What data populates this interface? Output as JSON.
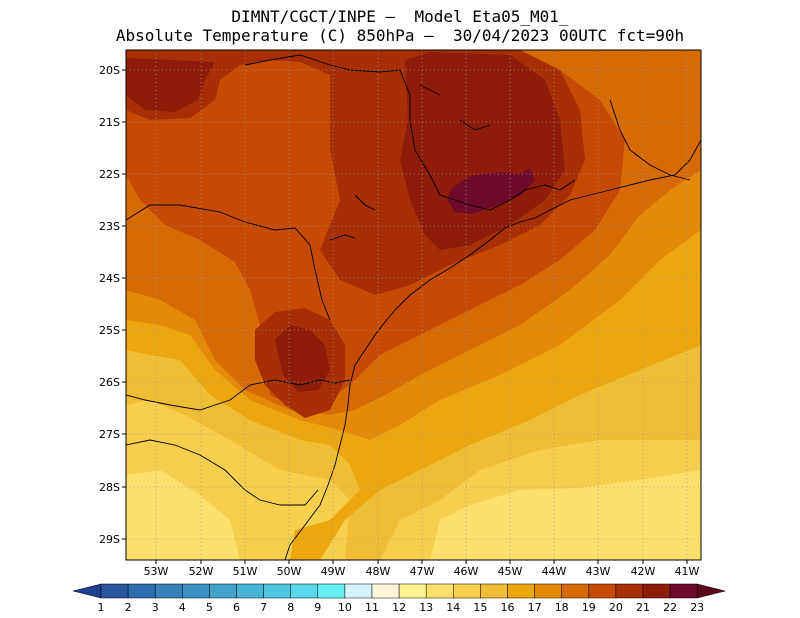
{
  "title": {
    "line1": "DIMNT/CGCT/INPE –  Model Eta05_M01_",
    "line2": "Absolute Temperature (C) 850hPa –  30/04/2023 00UTC fct=90h"
  },
  "axes": {
    "lat_labels": [
      "20S",
      "21S",
      "22S",
      "23S",
      "24S",
      "25S",
      "26S",
      "27S",
      "28S",
      "29S"
    ],
    "lon_labels": [
      "53W",
      "52W",
      "51W",
      "50W",
      "49W",
      "48W",
      "47W",
      "46W",
      "45W",
      "44W",
      "43W",
      "42W",
      "41W"
    ]
  },
  "colorbar": {
    "labels": [
      "1",
      "2",
      "3",
      "4",
      "5",
      "6",
      "7",
      "8",
      "9",
      "10",
      "11",
      "12",
      "13",
      "14",
      "15",
      "16",
      "17",
      "18",
      "19",
      "20",
      "21",
      "22",
      "23"
    ],
    "colors": [
      "#1f3f8f",
      "#2a56a0",
      "#2f6caf",
      "#3780b8",
      "#3c90c2",
      "#42a2cc",
      "#48b4d6",
      "#4fc6df",
      "#58d8ea",
      "#66f0f5",
      "#d5f3fb",
      "#fff6da",
      "#fff291",
      "#fbe06c",
      "#f6cf4f",
      "#f0bd36",
      "#eca70f",
      "#e38a08",
      "#d86a06",
      "#c64a04",
      "#a72e05",
      "#8d1c0b",
      "#6e0a2a",
      "#5a0a1a"
    ]
  },
  "map": {
    "field_colors": {
      "t14": "#fbe06c",
      "t15": "#f6cf4f",
      "t16": "#f0bd36",
      "t17": "#eca70f",
      "t18": "#e38a08",
      "t19": "#d86a06",
      "t20": "#c64a04",
      "t21": "#a72e05",
      "t22": "#8d1c0b",
      "t23": "#6e0a2a"
    }
  }
}
